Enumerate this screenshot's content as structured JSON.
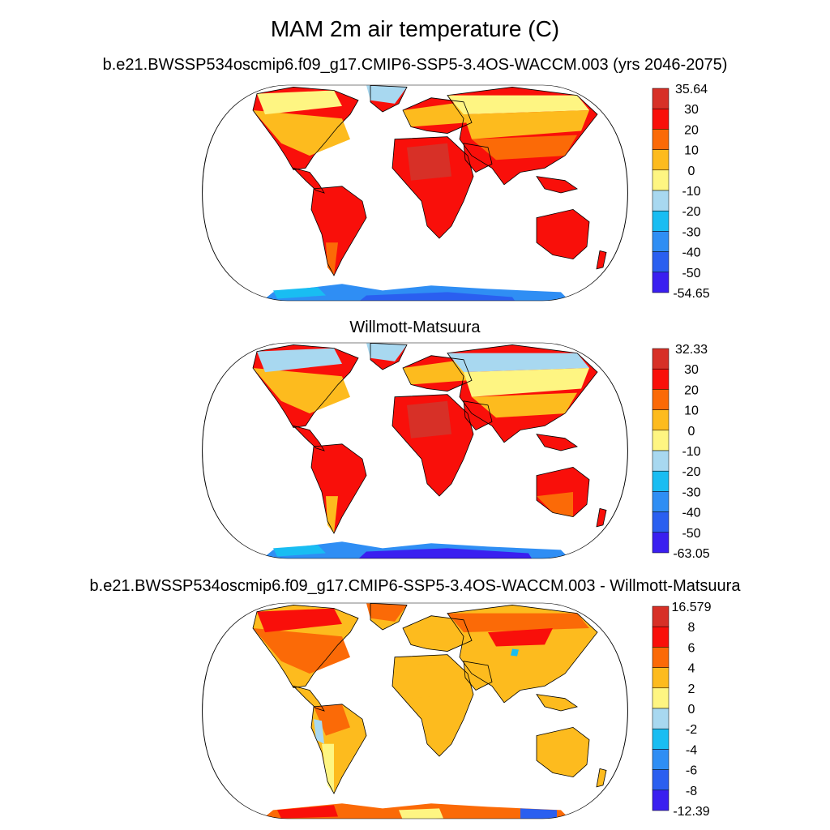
{
  "figure": {
    "title": "MAM 2m air temperature (C)"
  },
  "panels": [
    {
      "title": "b.e21.BWSSP534oscmip6.f09_g17.CMIP6-SSP5-3.4OS-WACCM.003 (yrs 2046-2075)",
      "colorbar": {
        "labels": [
          "35.64",
          "30",
          "20",
          "10",
          "0",
          "-10",
          "-20",
          "-30",
          "-40",
          "-50",
          "-54.65"
        ],
        "colors": [
          "#d73027",
          "#f90f0a",
          "#fb6a07",
          "#fdbb1e",
          "#fef582",
          "#a8d8f0",
          "#19bdf2",
          "#2f8ef4",
          "#2a5ff0",
          "#3a1ff0"
        ]
      }
    },
    {
      "title": "Willmott-Matsuura",
      "colorbar": {
        "labels": [
          "32.33",
          "30",
          "20",
          "10",
          "0",
          "-10",
          "-20",
          "-30",
          "-40",
          "-50",
          "-63.05"
        ],
        "colors": [
          "#d73027",
          "#f90f0a",
          "#fb6a07",
          "#fdbb1e",
          "#fef582",
          "#a8d8f0",
          "#19bdf2",
          "#2f8ef4",
          "#2a5ff0",
          "#3a1ff0"
        ]
      }
    },
    {
      "title": "b.e21.BWSSP534oscmip6.f09_g17.CMIP6-SSP5-3.4OS-WACCM.003 - Willmott-Matsuura",
      "colorbar": {
        "labels": [
          "16.579",
          "8",
          "6",
          "4",
          "2",
          "0",
          "-2",
          "-4",
          "-6",
          "-8",
          "-12.39"
        ],
        "colors": [
          "#d73027",
          "#f90f0a",
          "#fb6a07",
          "#fdbb1e",
          "#fef582",
          "#a8d8f0",
          "#19bdf2",
          "#2f8ef4",
          "#2a5ff0",
          "#3a1ff0"
        ]
      }
    }
  ]
}
